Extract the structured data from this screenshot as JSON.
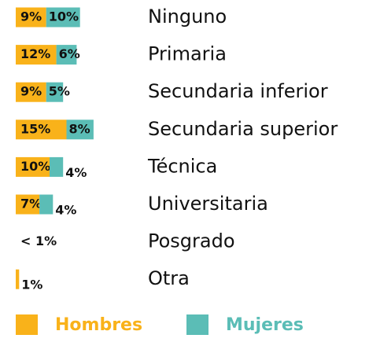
{
  "chart_data": {
    "type": "stacked-bar-horizontal",
    "categories": [
      "Ninguno",
      "Primaria",
      "Secundaria inferior",
      "Secundaria superior",
      "Técnica",
      "Universitaria",
      "Posgrado",
      "Otra"
    ],
    "series": [
      {
        "name": "Hombres",
        "color": "#f9b21a",
        "values": [
          9,
          12,
          9,
          15,
          10,
          7,
          null,
          1
        ],
        "value_labels": [
          "9%",
          "12%",
          "9%",
          "15%",
          "10%",
          "7%",
          null,
          "1%"
        ]
      },
      {
        "name": "Mujeres",
        "color": "#5bbdb6",
        "values": [
          10,
          6,
          5,
          8,
          4,
          4,
          null,
          null
        ],
        "value_labels": [
          "10%",
          "6%",
          "5%",
          "8%",
          "4%",
          "4%",
          null,
          null
        ]
      }
    ],
    "annotations": [
      {
        "category": "Posgrado",
        "text": "< 1%"
      }
    ],
    "legend": "bottom"
  }
}
